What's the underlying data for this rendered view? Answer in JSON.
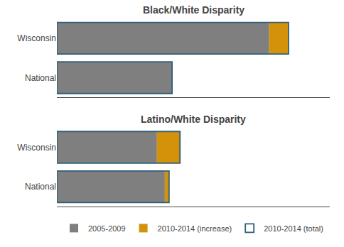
{
  "chart_data": [
    {
      "type": "bar",
      "title": "Black/White Disparity",
      "orientation": "horizontal",
      "stacked": true,
      "categories": [
        "National",
        "Wisconsin"
      ],
      "series": [
        {
          "name": "2005-2009",
          "color": "#7f7f7f",
          "values": [
            1.9,
            3.5
          ]
        },
        {
          "name": "2010-2014 (increase)",
          "color": "#D4920A",
          "values": [
            0.0,
            0.32
          ]
        },
        {
          "name": "2010-2014 (total)",
          "type": "outline",
          "color": "#2E5F78",
          "values": [
            1.9,
            3.82
          ]
        }
      ],
      "xlim": [
        0,
        4.5
      ],
      "tick_labels": "y",
      "grid": false,
      "legend": "bottom"
    },
    {
      "type": "bar",
      "title": "Latino/White Disparity",
      "orientation": "horizontal",
      "stacked": true,
      "categories": [
        "National",
        "Wisconsin"
      ],
      "series": [
        {
          "name": "2005-2009",
          "color": "#7f7f7f",
          "values": [
            1.78,
            1.65
          ]
        },
        {
          "name": "2010-2014 (increase)",
          "color": "#D4920A",
          "values": [
            0.07,
            0.38
          ]
        },
        {
          "name": "2010-2014 (total)",
          "type": "outline",
          "color": "#2E5F78",
          "values": [
            1.85,
            2.03
          ]
        }
      ],
      "xlim": [
        0,
        4.5
      ],
      "tick_labels": "y",
      "grid": false,
      "legend": "bottom"
    }
  ]
}
